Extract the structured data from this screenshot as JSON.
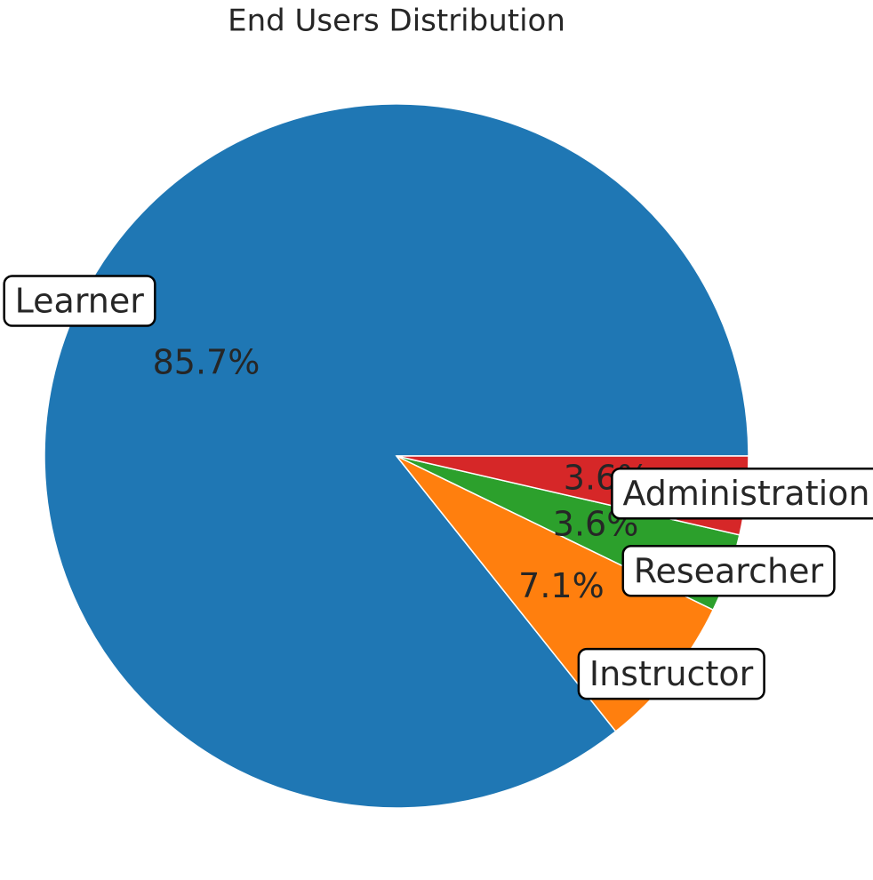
{
  "chart_data": {
    "type": "pie",
    "title": "End Users Distribution",
    "categories": [
      "Learner",
      "Instructor",
      "Researcher",
      "Administration"
    ],
    "values": [
      85.7,
      7.1,
      3.6,
      3.6
    ],
    "value_labels": [
      "85.7%",
      "7.1%",
      "3.6%",
      "3.6%"
    ],
    "colors": [
      "#1f77b4",
      "#ff7f0e",
      "#2ca02c",
      "#d62728"
    ]
  }
}
